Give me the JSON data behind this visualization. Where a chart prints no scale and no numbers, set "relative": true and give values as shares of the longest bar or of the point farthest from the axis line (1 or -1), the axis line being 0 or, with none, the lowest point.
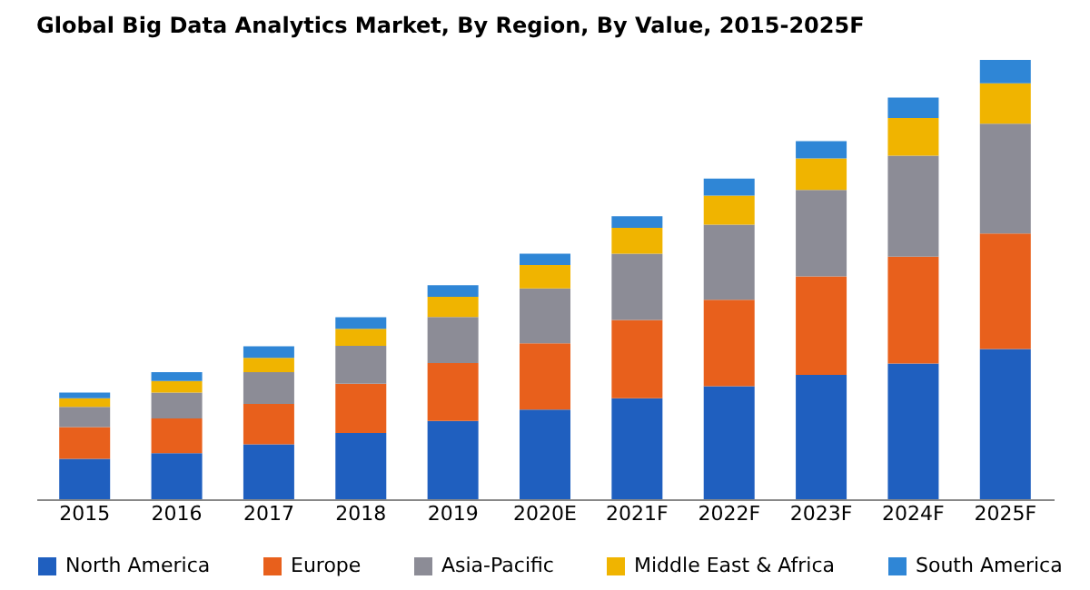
{
  "chart_data": {
    "type": "bar",
    "title": "Global Big Data Analytics Market, By Region, By Value, 2015-2025F",
    "relative": true,
    "stacked": true,
    "legend": "bottom",
    "grid": false,
    "categories": [
      "2015",
      "2016",
      "2017",
      "2018",
      "2019",
      "2020E",
      "2021F",
      "2022F",
      "2023F",
      "2024F",
      "2025F"
    ],
    "series": [
      {
        "name": "North America",
        "color": "#1f5fbf",
        "values": [
          0.092,
          0.105,
          0.125,
          0.151,
          0.178,
          0.204,
          0.23,
          0.257,
          0.283,
          0.309,
          0.342
        ]
      },
      {
        "name": "Europe",
        "color": "#e8601c",
        "values": [
          0.072,
          0.079,
          0.092,
          0.112,
          0.132,
          0.151,
          0.178,
          0.197,
          0.224,
          0.243,
          0.263
        ]
      },
      {
        "name": "Asia-Pacific",
        "color": "#8c8c96",
        "values": [
          0.046,
          0.059,
          0.072,
          0.086,
          0.105,
          0.125,
          0.151,
          0.171,
          0.197,
          0.23,
          0.25
        ]
      },
      {
        "name": "Middle East & Africa",
        "color": "#f0b400",
        "values": [
          0.02,
          0.026,
          0.033,
          0.039,
          0.046,
          0.053,
          0.059,
          0.066,
          0.072,
          0.086,
          0.092
        ]
      },
      {
        "name": "South America",
        "color": "#2f86d6",
        "values": [
          0.013,
          0.02,
          0.026,
          0.026,
          0.026,
          0.026,
          0.026,
          0.039,
          0.039,
          0.046,
          0.053
        ]
      }
    ]
  }
}
